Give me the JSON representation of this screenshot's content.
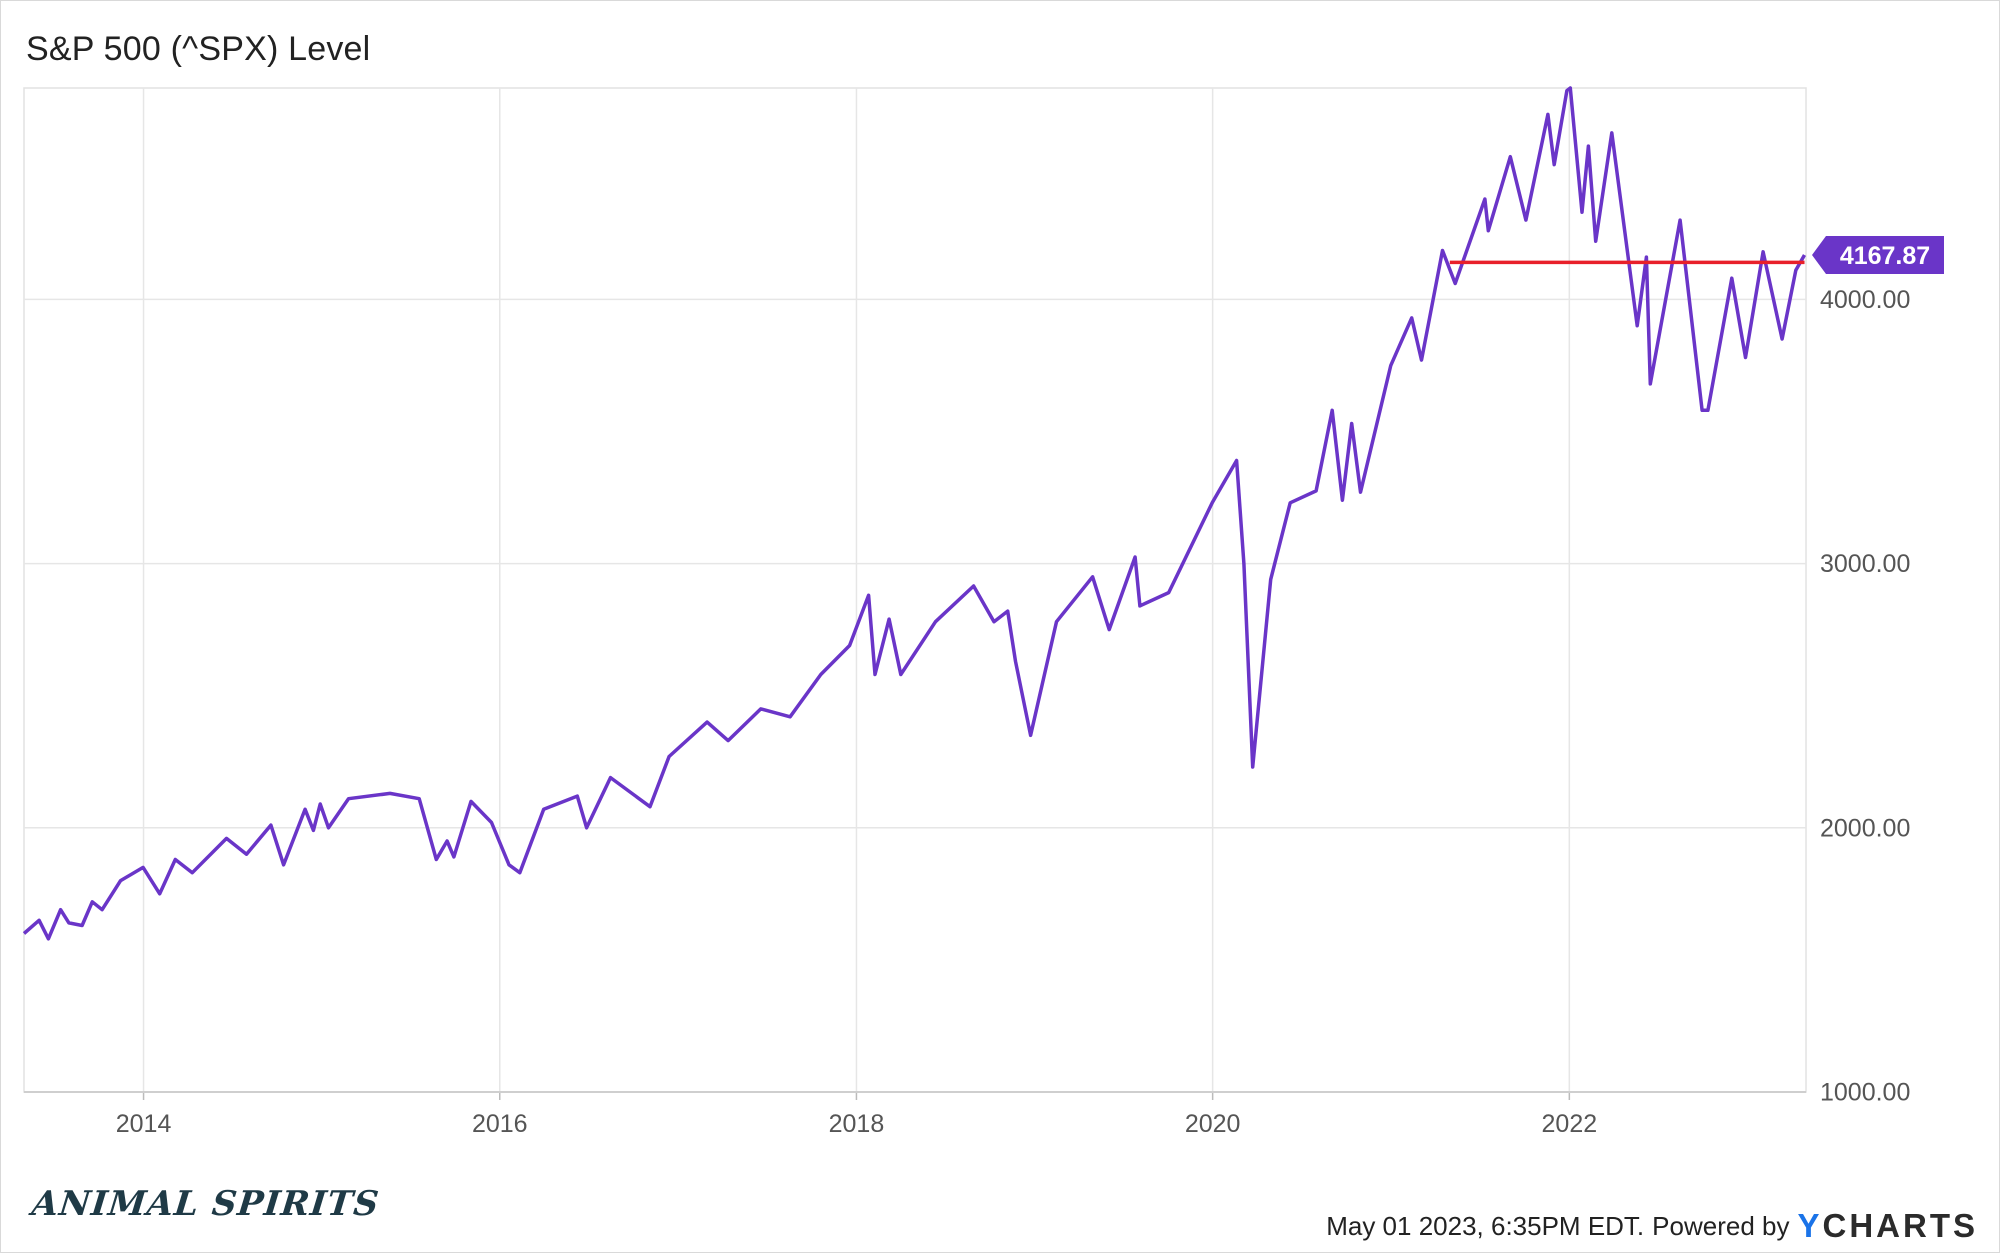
{
  "chart_data": {
    "type": "line",
    "title": "S&P 500 (^SPX) Level",
    "xlabel": "",
    "ylabel": "",
    "x_tick_labels": [
      "2014",
      "2016",
      "2018",
      "2020",
      "2022"
    ],
    "y_tick_labels": [
      "1000.00",
      "2000.00",
      "3000.00",
      "4000.00"
    ],
    "y_tick_values": [
      1000,
      2000,
      3000,
      4000
    ],
    "xlim": [
      "2013-05-01",
      "2023-05-01"
    ],
    "ylim": [
      1000,
      4800
    ],
    "grid": true,
    "current_value": 4167.87,
    "current_value_label": "4167.87",
    "reference_line": {
      "from": "2021-05-01",
      "to": "2023-04-28",
      "value": 4140,
      "color": "#e8202a"
    },
    "series": [
      {
        "color": "#6a35c8",
        "x": [
          "2013-05-01",
          "2013-06-01",
          "2013-06-20",
          "2013-07-15",
          "2013-08-01",
          "2013-08-28",
          "2013-09-18",
          "2013-10-08",
          "2013-11-15",
          "2013-12-31",
          "2014-02-03",
          "2014-03-07",
          "2014-04-11",
          "2014-06-20",
          "2014-07-31",
          "2014-09-19",
          "2014-10-15",
          "2014-11-28",
          "2014-12-15",
          "2014-12-29",
          "2015-01-15",
          "2015-02-25",
          "2015-05-21",
          "2015-07-20",
          "2015-08-24",
          "2015-09-15",
          "2015-09-29",
          "2015-11-03",
          "2015-12-15",
          "2016-01-20",
          "2016-02-11",
          "2016-03-31",
          "2016-06-08",
          "2016-06-27",
          "2016-08-15",
          "2016-11-04",
          "2016-12-13",
          "2017-03-01",
          "2017-04-13",
          "2017-06-19",
          "2017-08-18",
          "2017-10-20",
          "2017-12-18",
          "2018-01-26",
          "2018-02-08",
          "2018-03-09",
          "2018-04-02",
          "2018-06-12",
          "2018-08-29",
          "2018-10-10",
          "2018-11-07",
          "2018-11-23",
          "2018-12-24",
          "2019-02-15",
          "2019-04-30",
          "2019-06-03",
          "2019-07-26",
          "2019-08-05",
          "2019-10-03",
          "2019-12-31",
          "2020-02-19",
          "2020-03-05",
          "2020-03-23",
          "2020-04-29",
          "2020-06-08",
          "2020-07-31",
          "2020-09-02",
          "2020-09-23",
          "2020-10-12",
          "2020-10-30",
          "2020-12-31",
          "2021-02-12",
          "2021-03-04",
          "2021-04-16",
          "2021-05-12",
          "2021-07-12",
          "2021-07-19",
          "2021-09-02",
          "2021-10-04",
          "2021-11-18",
          "2021-12-01",
          "2021-12-27",
          "2022-01-03",
          "2022-01-27",
          "2022-02-09",
          "2022-02-24",
          "2022-03-29",
          "2022-05-20",
          "2022-06-08",
          "2022-06-16",
          "2022-08-16",
          "2022-09-30",
          "2022-10-12",
          "2022-11-30",
          "2022-12-28",
          "2023-02-02",
          "2023-03-13",
          "2023-04-10",
          "2023-04-28"
        ],
        "values": [
          1600,
          1650,
          1580,
          1690,
          1640,
          1630,
          1720,
          1690,
          1800,
          1850,
          1750,
          1880,
          1830,
          1960,
          1900,
          2010,
          1860,
          2070,
          1990,
          2090,
          2000,
          2110,
          2130,
          2110,
          1880,
          1950,
          1890,
          2100,
          2020,
          1860,
          1830,
          2070,
          2120,
          2000,
          2190,
          2080,
          2270,
          2400,
          2330,
          2450,
          2420,
          2580,
          2690,
          2880,
          2580,
          2790,
          2580,
          2780,
          2915,
          2780,
          2820,
          2630,
          2350,
          2780,
          2950,
          2750,
          3025,
          2840,
          2890,
          3230,
          3390,
          3000,
          2230,
          2940,
          3230,
          3275,
          3580,
          3240,
          3530,
          3270,
          3750,
          3930,
          3770,
          4185,
          4060,
          4380,
          4260,
          4540,
          4300,
          4700,
          4510,
          4790,
          4800,
          4330,
          4580,
          4220,
          4630,
          3900,
          4160,
          3680,
          4300,
          3580,
          3580,
          4080,
          3780,
          4180,
          3850,
          4110,
          4168
        ]
      }
    ]
  },
  "footer": {
    "logo_text": "ANIMAL SPIRITS",
    "timestamp": "May 01 2023, 6:35PM EDT.",
    "powered_by": "Powered by",
    "brand_initial": "Y",
    "brand_rest": "CHARTS",
    "brand_color": "#1a73e8"
  }
}
